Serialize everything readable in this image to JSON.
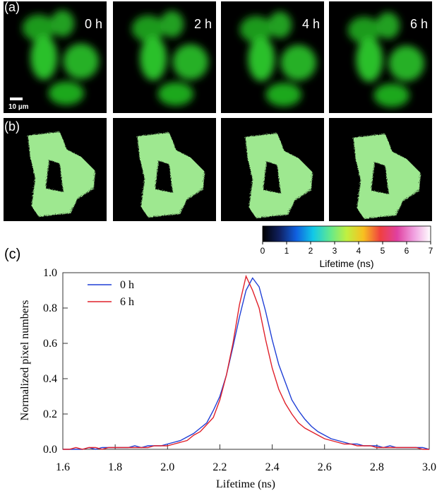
{
  "panels": {
    "a": "(a)",
    "b": "(b)",
    "c": "(c)",
    "times": [
      "0 h",
      "2 h",
      "4 h",
      "6 h"
    ],
    "scale_bar": "10 µm"
  },
  "colorbar": {
    "label": "Lifetime (ns)",
    "lim": [
      0,
      7
    ],
    "ticks": [
      0,
      1,
      2,
      3,
      4,
      5,
      6,
      7
    ]
  },
  "chart_data": {
    "type": "line",
    "xlabel": "Lifetime (ns)",
    "ylabel": "Normalized pixel numbers",
    "x": [
      1.6,
      1.625,
      1.65,
      1.675,
      1.7,
      1.725,
      1.75,
      1.775,
      1.8,
      1.825,
      1.85,
      1.875,
      1.9,
      1.925,
      1.95,
      1.975,
      2.0,
      2.025,
      2.05,
      2.075,
      2.1,
      2.125,
      2.15,
      2.175,
      2.2,
      2.225,
      2.25,
      2.275,
      2.3,
      2.325,
      2.35,
      2.375,
      2.4,
      2.425,
      2.45,
      2.475,
      2.5,
      2.525,
      2.55,
      2.575,
      2.6,
      2.625,
      2.65,
      2.675,
      2.7,
      2.725,
      2.75,
      2.775,
      2.8,
      2.825,
      2.85,
      2.875,
      2.9,
      2.925,
      2.95,
      2.975,
      3.0
    ],
    "series": [
      {
        "name": "0 h",
        "color": "#1f3fd6",
        "values": [
          0,
          0,
          0,
          0,
          0.01,
          0,
          0.01,
          0.01,
          0.01,
          0.01,
          0.01,
          0.02,
          0.01,
          0.02,
          0.02,
          0.02,
          0.03,
          0.04,
          0.05,
          0.07,
          0.09,
          0.12,
          0.15,
          0.22,
          0.3,
          0.42,
          0.58,
          0.75,
          0.9,
          0.97,
          0.92,
          0.78,
          0.62,
          0.48,
          0.38,
          0.28,
          0.22,
          0.17,
          0.13,
          0.1,
          0.08,
          0.06,
          0.05,
          0.04,
          0.03,
          0.03,
          0.02,
          0.02,
          0.02,
          0.01,
          0.02,
          0.01,
          0.01,
          0.01,
          0.01,
          0.01,
          0
        ]
      },
      {
        "name": "6 h",
        "color": "#e0202a",
        "values": [
          0,
          0,
          0.01,
          0,
          0.01,
          0.01,
          0,
          0.01,
          0.01,
          0.01,
          0.01,
          0.01,
          0.01,
          0.01,
          0.02,
          0.02,
          0.02,
          0.03,
          0.04,
          0.05,
          0.08,
          0.1,
          0.14,
          0.18,
          0.28,
          0.42,
          0.6,
          0.82,
          0.98,
          0.9,
          0.8,
          0.62,
          0.46,
          0.34,
          0.26,
          0.2,
          0.15,
          0.12,
          0.1,
          0.08,
          0.06,
          0.05,
          0.04,
          0.03,
          0.03,
          0.02,
          0.02,
          0.02,
          0.01,
          0.01,
          0.01,
          0.01,
          0.01,
          0.01,
          0.01,
          0,
          0
        ]
      }
    ],
    "xlim": [
      1.6,
      3.0
    ],
    "ylim": [
      0,
      1.0
    ],
    "xticks": [
      1.6,
      1.8,
      {
        "value": 2,
        "label": "2.0"
      },
      2.2,
      2.4,
      2.6,
      2.8,
      {
        "value": 3,
        "label": "3.0"
      }
    ],
    "yticks": [
      {
        "value": 0,
        "label": "0.0"
      },
      0.2,
      0.4,
      0.6,
      0.8,
      {
        "value": 1,
        "label": "1.0"
      }
    ]
  }
}
